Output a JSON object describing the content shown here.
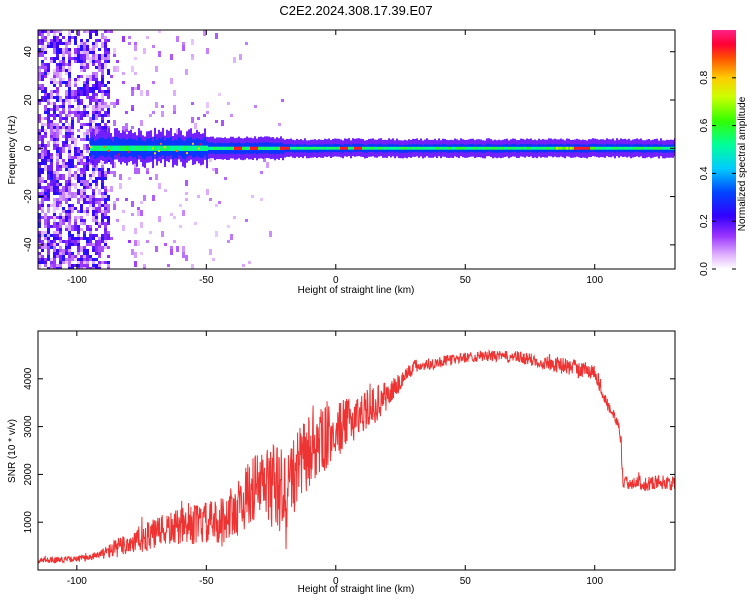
{
  "title": "C2E2.2024.308.17.39.E07",
  "colors": {
    "snr_line": "#ee3333",
    "axis": "#000000",
    "colormap": [
      "#ffffff",
      "#cc66ff",
      "#6600ff",
      "#0000ff",
      "#00ccff",
      "#00ff88",
      "#66ff00",
      "#ffee00",
      "#ff8800",
      "#ff0033",
      "#ff3399"
    ]
  },
  "chart_data": [
    {
      "type": "heatmap",
      "title": "",
      "xlabel": "Height of straight line (km)",
      "ylabel": "Frequency (Hz)",
      "xlim": [
        -115,
        131
      ],
      "ylim": [
        -50,
        49
      ],
      "x_ticks": [
        -100,
        -50,
        0,
        50,
        100
      ],
      "x_tick_labels": [
        "-100",
        "-50",
        "0",
        "50",
        "100"
      ],
      "y_ticks": [
        -40,
        -20,
        0,
        20,
        40
      ],
      "y_tick_labels": [
        "-40",
        "-20",
        "0",
        "20",
        "40"
      ],
      "colorbar": {
        "label": "Normalized spectral amplitude",
        "range": [
          0,
          1
        ],
        "ticks": [
          0.0,
          0.2,
          0.4,
          0.6,
          0.8
        ],
        "tick_labels": [
          "0.0",
          "0.2",
          "0.4",
          "0.6",
          "0.8"
        ]
      },
      "features": {
        "noise_region_x": [
          -115,
          -88
        ],
        "carrier_frequency_hz": 0,
        "carrier_start_x": -95,
        "sparse_noise_region_x": [
          -88,
          -20
        ],
        "peak_amplitude_x": [
          -38,
          -32,
          -20,
          3,
          8,
          93,
          96
        ]
      }
    },
    {
      "type": "line",
      "title": "",
      "xlabel": "Height of straight line (km)",
      "ylabel": "SNR (10 * v/v)",
      "xlim": [
        -115,
        131
      ],
      "ylim": [
        0,
        5000
      ],
      "x_ticks": [
        -100,
        -50,
        0,
        50,
        100
      ],
      "x_tick_labels": [
        "-100",
        "-50",
        "0",
        "50",
        "100"
      ],
      "y_ticks": [
        1000,
        2000,
        3000,
        4000
      ],
      "y_tick_labels": [
        "1000",
        "2000",
        "3000",
        "4000"
      ],
      "series": [
        {
          "name": "SNR",
          "x": [
            -115,
            -100,
            -92,
            -85,
            -75,
            -65,
            -55,
            -45,
            -38,
            -32,
            -25,
            -20,
            -15,
            -10,
            -5,
            0,
            5,
            10,
            15,
            20,
            30,
            40,
            50,
            60,
            70,
            80,
            90,
            100,
            104,
            106,
            108,
            110,
            111,
            115,
            120,
            125,
            131
          ],
          "y": [
            200,
            230,
            300,
            450,
            650,
            850,
            950,
            1000,
            1300,
            1700,
            1800,
            1600,
            2100,
            2500,
            2700,
            2900,
            3100,
            3300,
            3450,
            3650,
            4250,
            4350,
            4450,
            4480,
            4450,
            4350,
            4250,
            4150,
            3600,
            3300,
            3200,
            2800,
            1800,
            1850,
            1800,
            1850,
            1800
          ],
          "noise": [
            60,
            60,
            80,
            200,
            300,
            350,
            420,
            480,
            600,
            700,
            900,
            950,
            800,
            800,
            700,
            600,
            500,
            420,
            400,
            300,
            150,
            120,
            110,
            110,
            130,
            150,
            180,
            180,
            150,
            120,
            120,
            200,
            150,
            150,
            150,
            150,
            150
          ]
        }
      ]
    }
  ]
}
